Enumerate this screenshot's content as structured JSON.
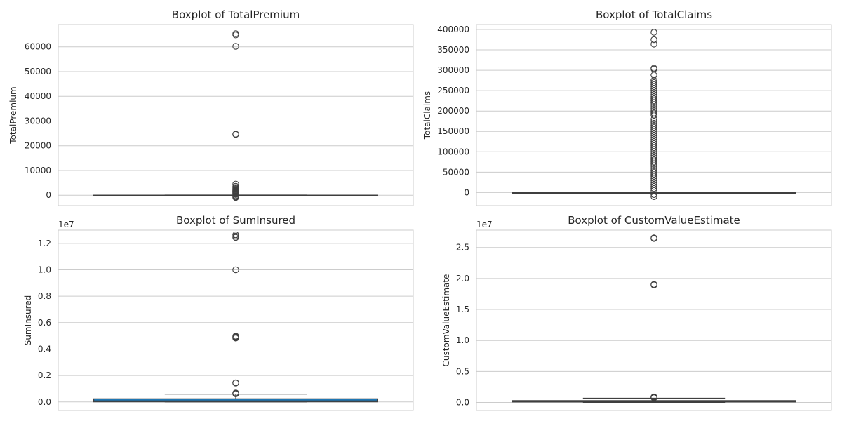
{
  "chart_data": [
    {
      "type": "boxplot",
      "title": "Boxplot of TotalPremium",
      "ylabel": "TotalPremium",
      "offset_label": "",
      "yticks": [
        0,
        10000,
        20000,
        30000,
        40000,
        50000,
        60000
      ],
      "ytick_labels": [
        "0",
        "10000",
        "20000",
        "30000",
        "40000",
        "50000",
        "60000"
      ],
      "ylim": [
        -4200,
        69000
      ],
      "box": {
        "q1": 0,
        "median": 2,
        "q3": 22,
        "whisker_low": 0,
        "whisker_high": 55
      },
      "color": "#1f77b4",
      "outliers": [
        65300,
        64800,
        60200,
        24700,
        24600,
        4500,
        3600,
        3100,
        2700,
        2400,
        2100,
        1900,
        1700,
        1500,
        1300,
        1100,
        900,
        700,
        500,
        300,
        -200,
        -400,
        -700,
        -900
      ]
    },
    {
      "type": "boxplot",
      "title": "Boxplot of TotalClaims",
      "ylabel": "TotalClaims",
      "offset_label": "",
      "yticks": [
        0,
        50000,
        100000,
        150000,
        200000,
        250000,
        300000,
        350000,
        400000
      ],
      "ytick_labels": [
        "0",
        "50000",
        "100000",
        "150000",
        "200000",
        "250000",
        "300000",
        "350000",
        "400000"
      ],
      "ylim": [
        -32000,
        412000
      ],
      "box": {
        "q1": 0,
        "median": 0,
        "q3": 0,
        "whisker_low": 0,
        "whisker_high": 0
      },
      "color": "#1f77b4",
      "outliers": [
        393000,
        375000,
        364000,
        305000,
        303000,
        288000,
        275000,
        270000,
        265000,
        260000,
        255000,
        250000,
        245000,
        240000,
        235000,
        230000,
        225000,
        220000,
        215000,
        210000,
        205000,
        200000,
        195000,
        190000,
        180000,
        175000,
        170000,
        165000,
        160000,
        155000,
        150000,
        145000,
        140000,
        135000,
        130000,
        125000,
        120000,
        115000,
        110000,
        105000,
        100000,
        95000,
        90000,
        85000,
        80000,
        75000,
        70000,
        65000,
        60000,
        55000,
        50000,
        45000,
        40000,
        35000,
        30000,
        25000,
        20000,
        15000,
        10000,
        5000,
        -5000,
        -10000
      ]
    },
    {
      "type": "boxplot",
      "title": "Boxplot of SumInsured",
      "ylabel": "SumInsured",
      "offset_label": "1e7",
      "yticks": [
        0.0,
        0.2,
        0.4,
        0.6,
        0.8,
        1.0,
        1.2
      ],
      "ytick_labels": [
        "0.0",
        "0.2",
        "0.4",
        "0.6",
        "0.8",
        "1.0",
        "1.2"
      ],
      "ylim": [
        -0.065,
        1.3
      ],
      "box": {
        "q1": 0.0005,
        "median": 0.0075,
        "q3": 0.0235,
        "whisker_low": 0.0,
        "whisker_high": 0.059
      },
      "color": "#1f77b4",
      "outliers": [
        1.265,
        1.255,
        1.245,
        1.0,
        0.498,
        0.493,
        0.488,
        0.483,
        0.145,
        0.143,
        0.068,
        0.064,
        0.061
      ]
    },
    {
      "type": "boxplot",
      "title": "Boxplot of CustomValueEstimate",
      "ylabel": "CustomValueEstimate",
      "offset_label": "1e7",
      "yticks": [
        0.0,
        0.5,
        1.0,
        1.5,
        2.0,
        2.5
      ],
      "ytick_labels": [
        "0.0",
        "0.5",
        "1.0",
        "1.5",
        "2.0",
        "2.5"
      ],
      "ylim": [
        -0.13,
        2.78
      ],
      "box": {
        "q1": 0.008,
        "median": 0.017,
        "q3": 0.03,
        "whisker_low": 0.0,
        "whisker_high": 0.068
      },
      "color": "#1f77b4",
      "outliers": [
        2.655,
        2.645,
        1.905,
        1.895,
        0.09,
        0.085,
        0.08,
        0.075
      ]
    }
  ]
}
